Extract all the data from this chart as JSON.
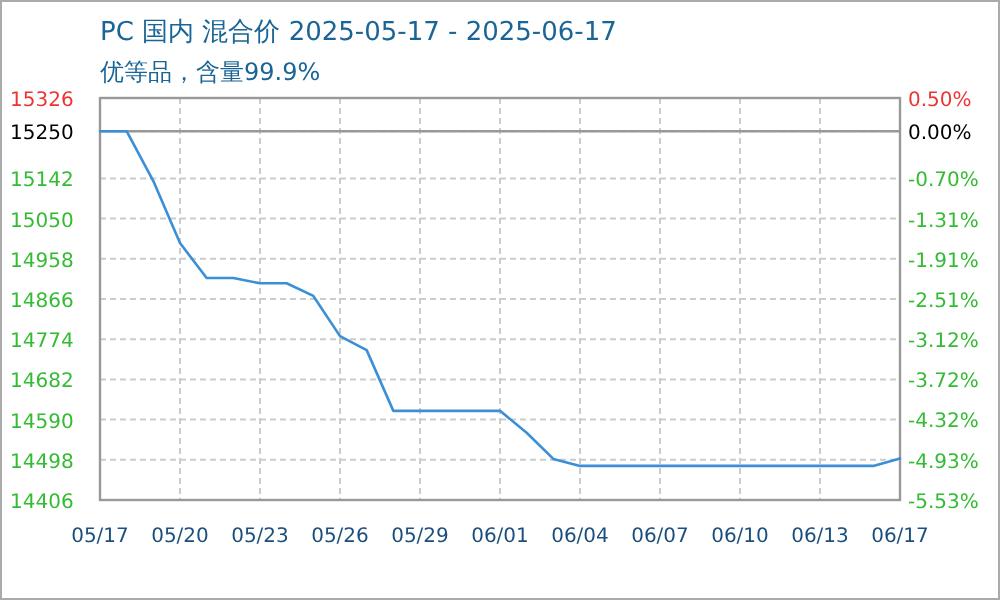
{
  "chart_data": {
    "type": "line",
    "title": "PC 国内 混合价 2025-05-17 - 2025-06-17",
    "subtitle": "优等品，含量99.9%",
    "categories": [
      "05/17",
      null,
      null,
      "05/20",
      null,
      null,
      "05/23",
      null,
      null,
      "05/26",
      null,
      null,
      "05/29",
      null,
      null,
      "06/01",
      null,
      null,
      "06/04",
      null,
      null,
      "06/07",
      null,
      null,
      "06/10",
      null,
      null,
      "06/13",
      null,
      null,
      "06/17"
    ],
    "series": [
      {
        "color": "#3a8fd6",
        "values": [
          15250,
          15250,
          15136,
          14994,
          14914,
          14914,
          14902,
          14902,
          14873,
          14781,
          14749,
          14610,
          14610,
          14610,
          14610,
          14610,
          14560,
          14500,
          14484,
          14484,
          14484,
          14484,
          14484,
          14484,
          14484,
          14484,
          14484,
          14484,
          14484,
          14484,
          14501
        ]
      }
    ],
    "ylim": [
      14406,
      15326
    ],
    "yticks": [
      14406,
      14498,
      14590,
      14682,
      14774,
      14866,
      14958,
      15050,
      15142,
      15250,
      15326
    ],
    "y2lim": [
      -5.53,
      0.5
    ],
    "y2ticks": [
      {
        "value": -5.53,
        "label": "-5.53%"
      },
      {
        "value": -4.93,
        "label": "-4.93%"
      },
      {
        "value": -4.32,
        "label": "-4.32%"
      },
      {
        "value": -3.72,
        "label": "-3.72%"
      },
      {
        "value": -3.12,
        "label": "-3.12%"
      },
      {
        "value": -2.51,
        "label": "-2.51%"
      },
      {
        "value": -1.91,
        "label": "-1.91%"
      },
      {
        "value": -1.31,
        "label": "-1.31%"
      },
      {
        "value": -0.7,
        "label": "-0.70%"
      },
      {
        "value": 0,
        "label": "0.00%"
      },
      {
        "value": 0.5,
        "label": "0.50%"
      }
    ],
    "ref_lines": [
      {
        "axis": "y",
        "value": 15250,
        "color": "#999999"
      }
    ],
    "grid": true,
    "marker": "none",
    "line_style": "solid"
  }
}
